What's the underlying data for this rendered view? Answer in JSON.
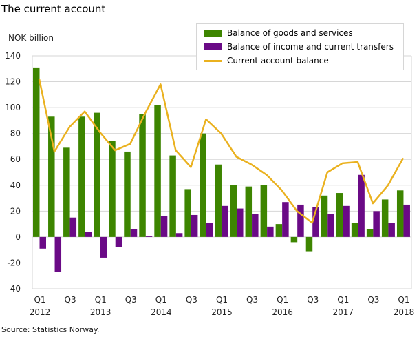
{
  "title": "The current account",
  "source": "Source: Statistics Norway.",
  "colors": {
    "goods": "#3d8500",
    "income": "#6a0a86",
    "current": "#eab11f",
    "grid": "#d6d6d6"
  },
  "chart_data": {
    "type": "bar+line",
    "ylabel": "NOK billion",
    "ylim": [
      -40,
      140
    ],
    "yticks": [
      -40,
      -20,
      0,
      20,
      40,
      60,
      80,
      100,
      120,
      140
    ],
    "grid": true,
    "legend_position": "top-right",
    "categories": [
      "2012Q1",
      "2012Q2",
      "2012Q3",
      "2012Q4",
      "2013Q1",
      "2013Q2",
      "2013Q3",
      "2013Q4",
      "2014Q1",
      "2014Q2",
      "2014Q3",
      "2014Q4",
      "2015Q1",
      "2015Q2",
      "2015Q3",
      "2015Q4",
      "2016Q1",
      "2016Q2",
      "2016Q3",
      "2016Q4",
      "2017Q1",
      "2017Q2",
      "2017Q3",
      "2017Q4",
      "2018Q1"
    ],
    "xtick_labels": [
      {
        "q": "Q1",
        "year": "2012"
      },
      {
        "q": "Q3",
        "year": ""
      },
      {
        "q": "Q1",
        "year": "2013"
      },
      {
        "q": "Q3",
        "year": ""
      },
      {
        "q": "Q1",
        "year": "2014"
      },
      {
        "q": "Q3",
        "year": ""
      },
      {
        "q": "Q1",
        "year": "2015"
      },
      {
        "q": "Q3",
        "year": ""
      },
      {
        "q": "Q1",
        "year": "2016"
      },
      {
        "q": "Q3",
        "year": ""
      },
      {
        "q": "Q1",
        "year": "2017"
      },
      {
        "q": "Q3",
        "year": ""
      },
      {
        "q": "Q1",
        "year": "2018"
      }
    ],
    "series": [
      {
        "name": "Balance of goods and services",
        "type": "bar",
        "values": [
          131,
          93,
          69,
          93,
          96,
          74,
          66,
          95,
          102,
          63,
          37,
          80,
          56,
          40,
          39,
          40,
          10,
          -4,
          -11,
          32,
          34,
          11,
          6,
          29,
          36
        ]
      },
      {
        "name": "Balance of income and current transfers",
        "type": "bar",
        "values": [
          -9,
          -27,
          15,
          4,
          -16,
          -8,
          6,
          1,
          16,
          3,
          17,
          11,
          24,
          22,
          18,
          8,
          27,
          25,
          23,
          18,
          24,
          48,
          20,
          11,
          25
        ]
      },
      {
        "name": "Current account balance",
        "type": "line",
        "values": [
          122,
          66,
          85,
          97,
          81,
          67,
          72,
          96,
          118,
          67,
          54,
          91,
          80,
          62,
          56,
          48,
          36,
          20,
          11,
          50,
          57,
          58,
          26,
          40,
          61
        ]
      }
    ]
  }
}
